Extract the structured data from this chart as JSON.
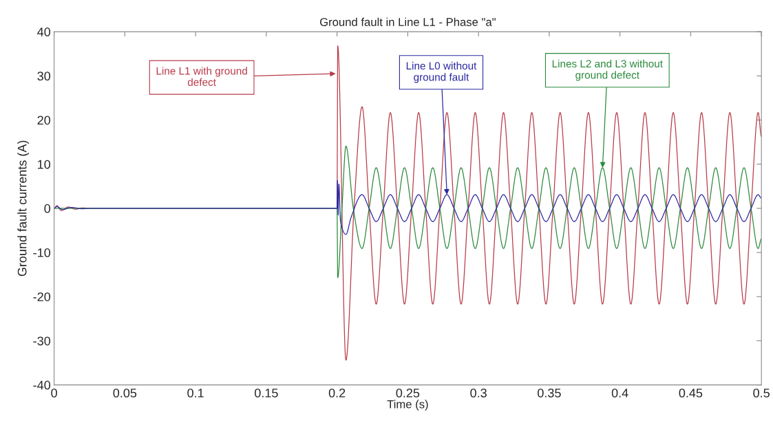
{
  "chart_data": {
    "type": "line",
    "title": "Ground fault in Line L1 - Phase \"a\"",
    "xlabel": "Time (s)",
    "ylabel": "Ground fault currents (A)",
    "xlim": [
      0,
      0.5
    ],
    "xticks": [
      0,
      0.05,
      0.1,
      0.15,
      0.2,
      0.25,
      0.3,
      0.35,
      0.4,
      0.45,
      0.5
    ],
    "ylim": [
      -40,
      40
    ],
    "yticks": [
      -40,
      -30,
      -20,
      -10,
      0,
      10,
      20,
      30,
      40
    ],
    "grid": false,
    "legend": false,
    "annotations": [
      {
        "text": "Line L1 with ground\ndefect",
        "x": 0.199,
        "y": 30.5
      },
      {
        "text": "Line L0 without\nground fault",
        "x": 0.2777,
        "y": 3.1
      },
      {
        "text": "Lines L2 and L3 without\nground defect",
        "x": 0.3877,
        "y": 9.2
      }
    ],
    "series": [
      {
        "color": "#b83a4a",
        "x": [
          0,
          0.002,
          0.005,
          0.01,
          0.015,
          0.02,
          0.025,
          0.2,
          0.2005,
          0.2063,
          0.212,
          0.2177,
          0.2227,
          0.2277,
          0.2327,
          0.2377,
          0.2427,
          0.2477,
          0.2527,
          0.2577,
          0.2627,
          0.2677,
          0.2727,
          0.2777,
          0.2827,
          0.2877,
          0.2927,
          0.2977,
          0.3027,
          0.3077,
          0.3127,
          0.3177,
          0.3227,
          0.3277,
          0.3327,
          0.3377,
          0.3427,
          0.3477,
          0.3527,
          0.3577,
          0.3627,
          0.3677,
          0.3727,
          0.3777,
          0.3827,
          0.3877,
          0.3927,
          0.3977,
          0.4027,
          0.4077,
          0.4127,
          0.4177,
          0.4227,
          0.4277,
          0.4327,
          0.4377,
          0.4427,
          0.4477,
          0.4527,
          0.4577,
          0.4627,
          0.4677,
          0.4727,
          0.4777,
          0.4827,
          0.4877,
          0.4927,
          0.4977,
          0.5
        ],
        "values": [
          0,
          0.6,
          -0.5,
          0.3,
          -0.2,
          0.1,
          0,
          0,
          36.8,
          -34.4,
          0,
          23,
          0,
          -21.7,
          0,
          21.7,
          0,
          -21.7,
          0,
          21.7,
          0,
          -21.7,
          0,
          21.7,
          0,
          -21.7,
          0,
          21.7,
          0,
          -21.7,
          0,
          21.7,
          0,
          -21.7,
          0,
          21.7,
          0,
          -21.7,
          0,
          21.7,
          0,
          -21.7,
          0,
          21.7,
          0,
          -21.7,
          0,
          21.7,
          0,
          -21.7,
          0,
          21.7,
          0,
          -21.7,
          0,
          21.7,
          0,
          -21.7,
          0,
          21.7,
          0,
          -21.7,
          0,
          21.7,
          0,
          -21.7,
          0,
          21.7,
          16.3
        ]
      },
      {
        "color": "#2a8a3a",
        "x": [
          0,
          0.2,
          0.2005,
          0.2035,
          0.2063,
          0.2115,
          0.2177,
          0.2227,
          0.2277,
          0.2327,
          0.2377,
          0.2427,
          0.2477,
          0.2527,
          0.2577,
          0.2627,
          0.2677,
          0.2727,
          0.2777,
          0.2827,
          0.2877,
          0.2927,
          0.2977,
          0.3027,
          0.3077,
          0.3127,
          0.3177,
          0.3227,
          0.3277,
          0.3327,
          0.3377,
          0.3427,
          0.3477,
          0.3527,
          0.3577,
          0.3627,
          0.3677,
          0.3727,
          0.3777,
          0.3827,
          0.3877,
          0.3927,
          0.3977,
          0.4027,
          0.4077,
          0.4127,
          0.4177,
          0.4227,
          0.4277,
          0.4327,
          0.4377,
          0.4427,
          0.4477,
          0.4527,
          0.4577,
          0.4627,
          0.4677,
          0.4727,
          0.4777,
          0.4827,
          0.4877,
          0.4927,
          0.4977,
          0.5
        ],
        "values": [
          0,
          0,
          -15.7,
          0,
          14.1,
          0,
          -9.1,
          0,
          9.2,
          0,
          -9.1,
          0,
          9.2,
          0,
          -9.1,
          0,
          9.2,
          0,
          -9.1,
          0,
          9.2,
          0,
          -9.1,
          0,
          9.2,
          0,
          -9.1,
          0,
          9.2,
          0,
          -9.1,
          0,
          9.2,
          0,
          -9.1,
          0,
          9.2,
          0,
          -9.1,
          0,
          9.2,
          0,
          -9.1,
          0,
          9.2,
          0,
          -9.1,
          0,
          9.2,
          0,
          -9.1,
          0,
          9.2,
          0,
          -9.1,
          0,
          9.2,
          0,
          -9.1,
          0,
          9.2,
          0,
          -9.1,
          -6.9
        ]
      },
      {
        "color": "#2a2aa0",
        "x": [
          0,
          0.002,
          0.006,
          0.012,
          0.02,
          0.025,
          0.2,
          0.2003,
          0.2008,
          0.2013,
          0.2025,
          0.2063,
          0.21,
          0.2177,
          0.2227,
          0.2277,
          0.2327,
          0.2377,
          0.2427,
          0.2477,
          0.2527,
          0.2577,
          0.2627,
          0.2677,
          0.2727,
          0.2777,
          0.2827,
          0.2877,
          0.2927,
          0.2977,
          0.3027,
          0.3077,
          0.3127,
          0.3177,
          0.3227,
          0.3277,
          0.3327,
          0.3377,
          0.3427,
          0.3477,
          0.3527,
          0.3577,
          0.3627,
          0.3677,
          0.3727,
          0.3777,
          0.3827,
          0.3877,
          0.3927,
          0.3977,
          0.4027,
          0.4077,
          0.4127,
          0.4177,
          0.4227,
          0.4277,
          0.4327,
          0.4377,
          0.4427,
          0.4477,
          0.4527,
          0.4577,
          0.4627,
          0.4677,
          0.4727,
          0.4777,
          0.4827,
          0.4877,
          0.4927,
          0.4977,
          0.5
        ],
        "values": [
          0,
          0.4,
          -0.3,
          0.2,
          -0.1,
          0,
          0,
          6.3,
          -1.5,
          5.5,
          -3,
          -5.9,
          -2,
          3.1,
          0,
          -3,
          0,
          3.1,
          0,
          -3,
          0,
          3.1,
          0,
          -3,
          0,
          3.1,
          0,
          -3,
          0,
          3.1,
          0,
          -3,
          0,
          3.1,
          0,
          -3,
          0,
          3.1,
          0,
          -3,
          0,
          3.1,
          0,
          -3,
          0,
          3.1,
          0,
          -3,
          0,
          3.1,
          0,
          -3,
          0,
          3.1,
          0,
          -3,
          0,
          3.1,
          0,
          -3,
          0,
          3.1,
          0,
          -3,
          0,
          3.1,
          0,
          -3,
          0,
          3.1,
          2.3
        ]
      }
    ]
  }
}
